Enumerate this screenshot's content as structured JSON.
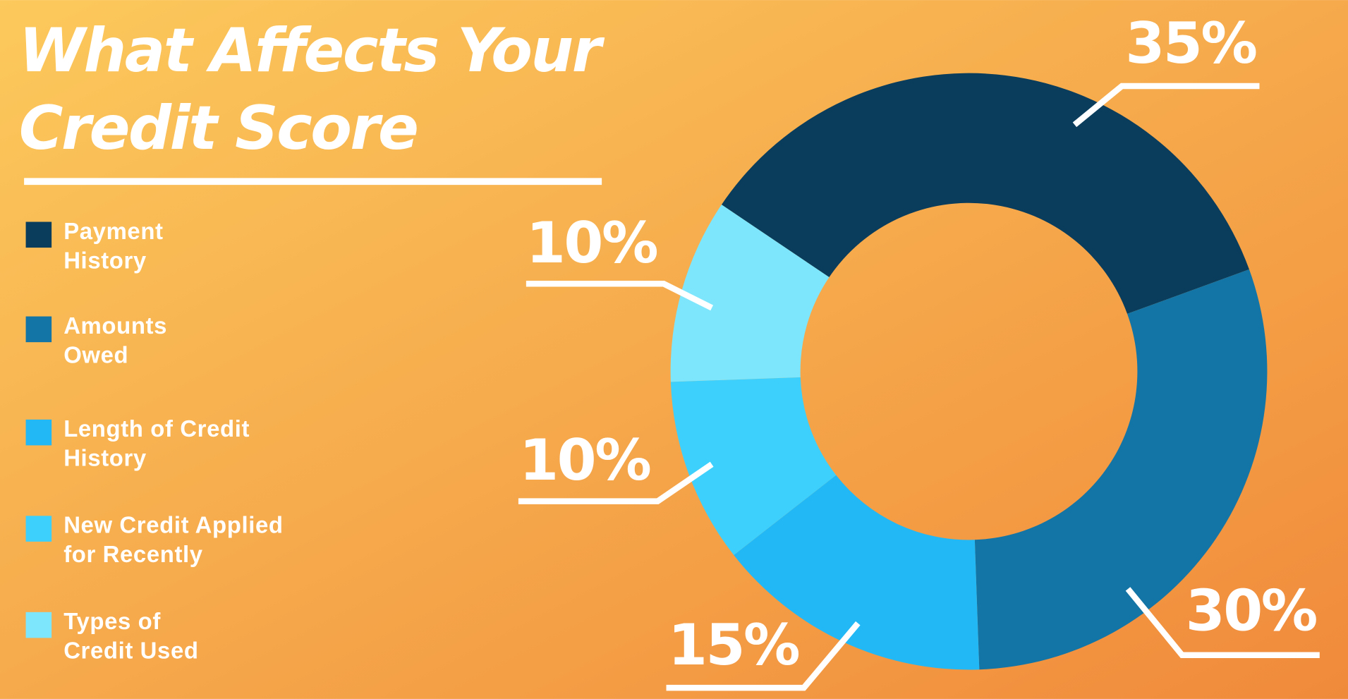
{
  "chart_data": {
    "type": "donut",
    "title": "What Affects Your Credit Score",
    "categories": [
      "Payment History",
      "Amounts Owed",
      "Length of Credit History",
      "New Credit Applied for Recently",
      "Types of Credit Used"
    ],
    "values": [
      35,
      30,
      15,
      10,
      10
    ],
    "value_labels": [
      "35%",
      "30%",
      "15%",
      "10%",
      "10%"
    ],
    "colors": [
      "#0a3d5c",
      "#1375a6",
      "#22b8f5",
      "#3dd0fc",
      "#7de6fc"
    ]
  }
}
